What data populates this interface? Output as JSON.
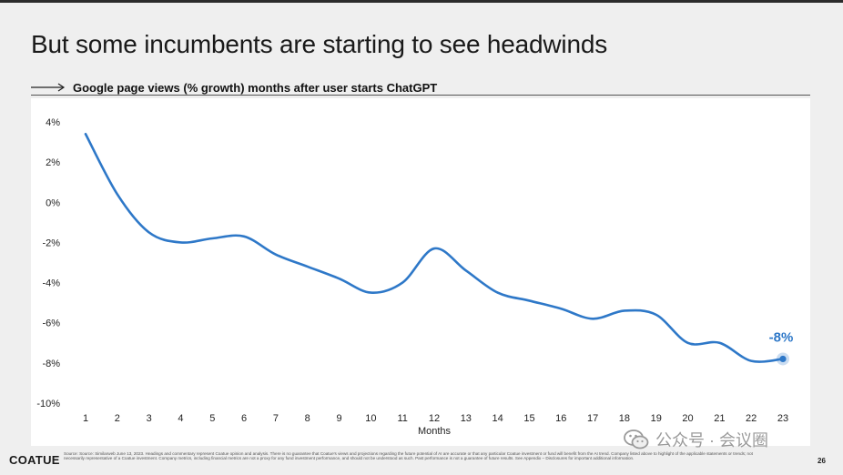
{
  "slide": {
    "title": "But some incumbents are starting to see headwinds",
    "subtitle": "Google page views (% growth) months after user starts ChatGPT",
    "brand": "COATUE",
    "disclaimer": "Source: Source: Similarweb June 13, 2023. Headings and commentary represent Coatue opinion and analysis. There is no guarantee that Coatue's views and projections regarding the future potential of AI are accurate or that any particular Coatue investment or fund will benefit from the AI trend. Company listed above to highlight of the applicable statements or trends; not necessarily representative of a Coatue investment. Company metrics, including financial metrics are not a proxy for any fund investment performance, and should not be understood as such. Past performance is not a guarantee of future results. See Appendix – Disclosures for important additional information.",
    "watermark": "公众号 · 会议圈",
    "page_number": "26",
    "accent_color": "#2e78c8"
  },
  "chart_data": {
    "type": "line",
    "title": "Google page views (% growth) months after user starts ChatGPT",
    "xlabel": "Months",
    "ylabel": "",
    "x": [
      1,
      2,
      3,
      4,
      5,
      6,
      7,
      8,
      9,
      10,
      11,
      12,
      13,
      14,
      15,
      16,
      17,
      18,
      19,
      20,
      21,
      22,
      23
    ],
    "series": [
      {
        "values": [
          3.4,
          0.4,
          -1.5,
          -2.0,
          -1.8,
          -1.7,
          -2.6,
          -3.2,
          -3.8,
          -4.5,
          -4.0,
          -2.3,
          -3.4,
          -4.5,
          -4.9,
          -5.3,
          -5.8,
          -5.4,
          -5.6,
          -7.0,
          -7.0,
          -7.9,
          -7.8
        ],
        "color": "#2e78c8"
      }
    ],
    "ylim": [
      -10,
      4
    ],
    "yticks": [
      4,
      2,
      0,
      -2,
      -4,
      -6,
      -8,
      -10
    ],
    "ytick_labels": [
      "4%",
      "2%",
      "0%",
      "-2%",
      "-4%",
      "-6%",
      "-8%",
      "-10%"
    ],
    "xtick_labels": [
      "1",
      "2",
      "3",
      "4",
      "5",
      "6",
      "7",
      "8",
      "9",
      "10",
      "11",
      "12",
      "13",
      "14",
      "15",
      "16",
      "17",
      "18",
      "19",
      "20",
      "21",
      "22",
      "23"
    ],
    "annotations": [
      {
        "x": 23,
        "text": "-8%"
      }
    ],
    "grid": false,
    "legend": "none"
  }
}
